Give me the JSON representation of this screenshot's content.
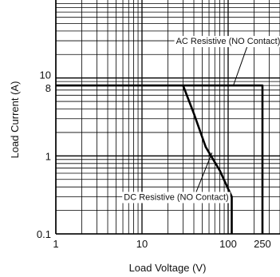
{
  "chart_data": {
    "type": "line",
    "xlabel": "Load Voltage (V)",
    "ylabel": "Load Current (A)",
    "x_scale": "log",
    "y_scale": "log",
    "xlim": [
      1,
      400
    ],
    "ylim": [
      0.1,
      100
    ],
    "grid": true,
    "x_ticks": [
      {
        "value": 1,
        "label": "1"
      },
      {
        "value": 10,
        "label": "10"
      },
      {
        "value": 100,
        "label": "100"
      },
      {
        "value": 250,
        "label": "250"
      }
    ],
    "y_ticks": [
      {
        "value": 0.1,
        "label": "0.1"
      },
      {
        "value": 1,
        "label": "1"
      },
      {
        "value": 8,
        "label": "8"
      },
      {
        "value": 10,
        "label": "10"
      }
    ],
    "series": [
      {
        "name": "AC Resistive (NO Contact)",
        "color": "#000000",
        "points": [
          [
            1,
            8
          ],
          [
            250,
            8
          ],
          [
            250,
            0.1
          ]
        ]
      },
      {
        "name": "DC Resistive (NO Contact)",
        "color": "#000000",
        "points": [
          [
            30,
            8
          ],
          [
            40,
            3.5
          ],
          [
            55,
            1.3
          ],
          [
            80,
            0.65
          ],
          [
            110,
            0.3
          ],
          [
            110,
            0.1
          ]
        ]
      }
    ],
    "annotations": [
      {
        "text": "AC Resistive (NO Contact)",
        "x": 100,
        "y": 30,
        "pointer_to": [
          115,
          8
        ]
      },
      {
        "text": "DC Resistive (NO Contact)",
        "x": 25,
        "y": 0.3,
        "pointer_to": [
          65,
          1.1
        ]
      }
    ]
  }
}
